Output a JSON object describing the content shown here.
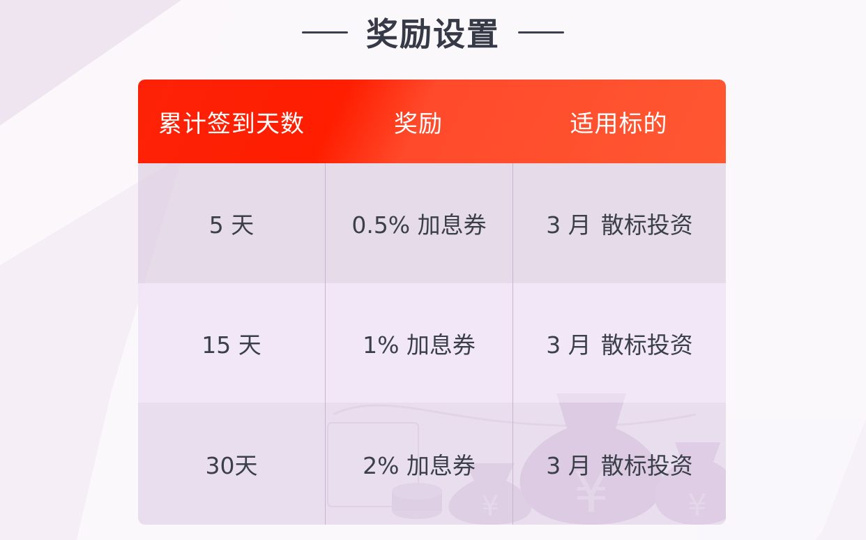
{
  "header": {
    "title": "奖励设置"
  },
  "table": {
    "columns": [
      "累计签到天数",
      "奖励",
      "适用标的"
    ],
    "rows": [
      {
        "days": "5 天",
        "reward": "0.5% 加息券",
        "target_month": "3 月",
        "target_type": "散标投资"
      },
      {
        "days": "15 天",
        "reward": "1% 加息券",
        "target_month": "3 月",
        "target_type": "散标投资"
      },
      {
        "days": "30天",
        "reward": "2% 加息券",
        "target_month": "3 月",
        "target_type": "散标投资"
      }
    ]
  },
  "colors": {
    "header_red": "#ff1e00",
    "header_orange": "#ff5732",
    "text_dark": "#3a3f4b",
    "background": "#f6f0f8"
  },
  "icons": [
    "money-bag-icon",
    "coin-stack-icon",
    "yen-icon"
  ]
}
